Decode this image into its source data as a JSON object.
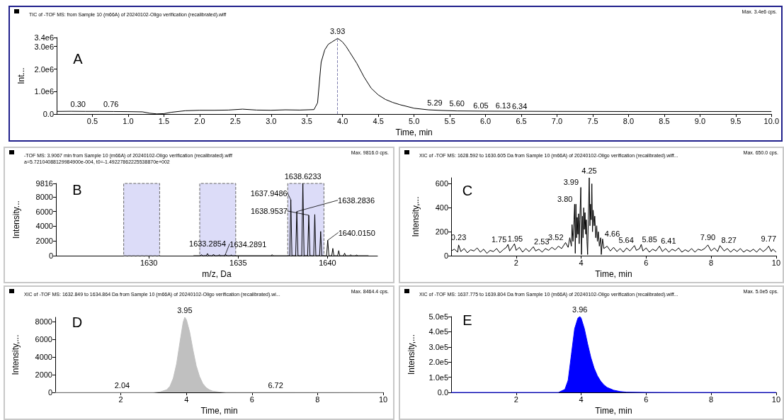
{
  "chart_data": [
    {
      "type": "line",
      "title": "TIC of -TOF MS: from Sample 10 (m66A) of 20240102-Oligo verification (recalibrated).wiff",
      "xlabel": "Time, min",
      "ylabel": "Int...",
      "marker": "none",
      "color": "#000000",
      "x": [
        0,
        0.2,
        0.4,
        0.6,
        0.8,
        1.0,
        1.2,
        1.3,
        1.4,
        1.5,
        1.6,
        1.8,
        2.0,
        2.2,
        2.4,
        2.6,
        2.8,
        3.0,
        3.2,
        3.4,
        3.6,
        3.65,
        3.7,
        3.75,
        3.8,
        3.85,
        3.9,
        3.93,
        3.96,
        4.0,
        4.05,
        4.1,
        4.2,
        4.3,
        4.4,
        4.5,
        4.6,
        4.7,
        4.8,
        5.0,
        5.2,
        5.4,
        5.6,
        6.0,
        6.5,
        7,
        8,
        9,
        10
      ],
      "values": [
        120000,
        125000,
        120000,
        120000,
        115000,
        110000,
        100000,
        40000,
        10000,
        20000,
        80000,
        150000,
        170000,
        170000,
        180000,
        220000,
        180000,
        170000,
        190000,
        180000,
        200000,
        500000,
        2300000,
        2850000,
        3100000,
        3200000,
        3300000,
        3360000,
        3300000,
        3200000,
        3000000,
        2750000,
        2250000,
        1650000,
        1150000,
        850000,
        650000,
        520000,
        420000,
        260000,
        190000,
        160000,
        140000,
        130000,
        125000,
        120000,
        115000,
        115000,
        115000
      ],
      "xlim": [
        0,
        10
      ],
      "xticks": [
        0.5,
        {
          "value": 1,
          "label": "1.0"
        },
        1.5,
        {
          "value": 2,
          "label": "2.0"
        },
        2.5,
        {
          "value": 3,
          "label": "3.0"
        },
        3.5,
        {
          "value": 4,
          "label": "4.0"
        },
        4.5,
        {
          "value": 5,
          "label": "5.0"
        },
        5.5,
        {
          "value": 6,
          "label": "6.0"
        },
        6.5,
        {
          "value": 7,
          "label": "7.0"
        },
        7.5,
        {
          "value": 8,
          "label": "8.0"
        },
        8.5,
        {
          "value": 9,
          "label": "9.0"
        },
        9.5,
        {
          "value": 10,
          "label": "10.0"
        }
      ],
      "ylim": [
        0,
        3400000
      ],
      "yticks": [
        {
          "value": 0,
          "label": "0.0"
        },
        {
          "value": 1000000,
          "label": "1.0e6"
        },
        {
          "value": 2000000,
          "label": "2.0e6"
        },
        {
          "value": 3000000,
          "label": "3.0e6"
        },
        {
          "value": 3400000,
          "label": "3.4e6"
        }
      ],
      "ref_lines": [
        {
          "axis": "x",
          "value": 3.93,
          "color": "#8080b0",
          "line_style": "dashed"
        }
      ],
      "annotations": [
        "Max. 3.4e6 cps.",
        "A",
        {
          "text": "3.93",
          "x": 3.93,
          "y": 3360000
        },
        {
          "text": "0.30",
          "x": 0.3,
          "y": 120000
        },
        {
          "text": "0.76",
          "x": 0.76,
          "y": 115000
        },
        {
          "text": "5.29",
          "x": 5.29,
          "y": 180000
        },
        {
          "text": "5.60",
          "x": 5.6,
          "y": 140000
        },
        {
          "text": "6.05",
          "x": 6.05,
          "y": 130000
        },
        {
          "text": "6.13",
          "x": 6.13,
          "y": 130000
        },
        {
          "text": "6.34",
          "x": 6.34,
          "y": 127000
        }
      ]
    },
    {
      "type": "line",
      "title": "-TOF MS: 3.9067 min from Sample 10 (m66A) of 20240102-Oligo verification (recalibrated).wiff",
      "subtitle": "a=5.72104088129984900e-004, t0=-1.49227862225538870e+002",
      "xlabel": "m/z, Da",
      "ylabel": "Intensity...",
      "marker": "none",
      "color": "#000000",
      "x": [
        1632.5,
        1632.89,
        1632.95,
        1633.01,
        1633.22,
        1633.2854,
        1633.35,
        1633.56,
        1633.62,
        1633.68,
        1633.89,
        1633.95,
        1634.01,
        1634.23,
        1634.2891,
        1634.35,
        1634.56,
        1634.62,
        1634.68,
        1636.84,
        1636.9,
        1636.96,
        1637.89,
        1637.9486,
        1638.01,
        1638.22,
        1638.2836,
        1638.35,
        1638.56,
        1638.6233,
        1638.69,
        1638.89,
        1638.9537,
        1639.02,
        1639.23,
        1639.29,
        1639.35,
        1639.56,
        1639.62,
        1639.68,
        1639.95,
        1640.015,
        1640.08,
        1640.24,
        1640.3,
        1640.36,
        1640.57,
        1640.63,
        1640.69,
        1640.9,
        1640.96,
        1641.02,
        1641.24,
        1641.3,
        1641.36,
        1641.57,
        1641.63,
        1641.69,
        1642.3
      ],
      "values": [
        0,
        0,
        150,
        0,
        0,
        300,
        0,
        0,
        200,
        0,
        0,
        150,
        0,
        0,
        200,
        0,
        0,
        100,
        0,
        0,
        150,
        0,
        0,
        7600,
        0,
        0,
        6000,
        0,
        0,
        9816,
        0,
        0,
        5500,
        0,
        0,
        5600,
        0,
        0,
        3300,
        0,
        0,
        2100,
        0,
        0,
        1000,
        0,
        0,
        700,
        0,
        0,
        350,
        0,
        0,
        150,
        0,
        0,
        100,
        0,
        0
      ],
      "xlim": [
        1624.8,
        1642.8
      ],
      "xticks": [
        1630,
        1635,
        1640
      ],
      "ylim": [
        0,
        9816
      ],
      "yticks": [
        0,
        2000,
        4000,
        6000,
        8000,
        9816
      ],
      "bands": [
        {
          "axis": "x",
          "from": 1628.592,
          "to": 1630.605,
          "color": "#dcdcf8"
        },
        {
          "axis": "x",
          "from": 1632.849,
          "to": 1634.864,
          "color": "#dcdcf8"
        },
        {
          "axis": "x",
          "from": 1637.775,
          "to": 1639.804,
          "color": "#dcdcf8"
        }
      ],
      "annotations": [
        "Max. 9816.0 cps.",
        "B",
        {
          "text": "1638.6233",
          "x": 1638.6233,
          "y": 9816
        },
        {
          "text": "1637.9486",
          "x": 1637.9486,
          "y": 7600
        },
        {
          "text": "1638.2836",
          "x": 1638.2836,
          "y": 6000
        },
        {
          "text": "1638.9537",
          "x": 1638.9537,
          "y": 5500
        },
        {
          "text": "1640.0150",
          "x": 1640.015,
          "y": 2100
        },
        {
          "text": "1633.2854",
          "x": 1633.2854,
          "y": 300
        },
        {
          "text": "1634.2891",
          "x": 1634.2891,
          "y": 200
        }
      ]
    },
    {
      "type": "line",
      "title": "XIC of -TOF MS: 1628.592 to 1630.605 Da from Sample 10 (m66A) of 20240102-Oligo verification (recalibrated).wiff...",
      "xlabel": "Time, min",
      "ylabel": "Intensity,...",
      "marker": "none",
      "color": "#000000",
      "x": [
        0,
        0.1,
        0.2,
        0.23,
        0.3,
        0.4,
        0.5,
        0.6,
        0.7,
        0.8,
        0.9,
        1.0,
        1.1,
        1.2,
        1.3,
        1.4,
        1.5,
        1.6,
        1.7,
        1.75,
        1.8,
        1.9,
        1.95,
        2.0,
        2.1,
        2.2,
        2.3,
        2.4,
        2.53,
        2.6,
        2.7,
        2.8,
        2.9,
        3.0,
        3.1,
        3.2,
        3.3,
        3.4,
        3.52,
        3.6,
        3.65,
        3.7,
        3.72,
        3.75,
        3.78,
        3.8,
        3.82,
        3.84,
        3.86,
        3.88,
        3.9,
        3.92,
        3.94,
        3.96,
        3.99,
        4.01,
        4.04,
        4.06,
        4.08,
        4.1,
        4.12,
        4.14,
        4.16,
        4.18,
        4.2,
        4.22,
        4.25,
        4.27,
        4.29,
        4.31,
        4.33,
        4.35,
        4.37,
        4.4,
        4.42,
        4.45,
        4.48,
        4.5,
        4.53,
        4.56,
        4.6,
        4.62,
        4.66,
        4.7,
        4.8,
        4.9,
        5.0,
        5.1,
        5.2,
        5.3,
        5.4,
        5.5,
        5.64,
        5.7,
        5.8,
        5.85,
        5.9,
        6.0,
        6.1,
        6.2,
        6.3,
        6.41,
        6.5,
        6.6,
        6.7,
        6.8,
        6.9,
        7.0,
        7.1,
        7.2,
        7.3,
        7.4,
        7.5,
        7.6,
        7.7,
        7.8,
        7.9,
        8.0,
        8.1,
        8.2,
        8.27,
        8.4,
        8.5,
        8.6,
        8.7,
        8.8,
        8.9,
        9.0,
        9.1,
        9.2,
        9.3,
        9.4,
        9.5,
        9.6,
        9.7,
        9.77,
        9.85,
        9.9,
        10.0
      ],
      "values": [
        40,
        55,
        30,
        90,
        35,
        60,
        25,
        50,
        40,
        65,
        30,
        55,
        20,
        45,
        35,
        60,
        25,
        50,
        70,
        95,
        40,
        80,
        100,
        45,
        70,
        30,
        60,
        35,
        75,
        40,
        55,
        30,
        60,
        45,
        70,
        50,
        80,
        60,
        110,
        70,
        150,
        80,
        260,
        120,
        300,
        430,
        20,
        430,
        150,
        320,
        180,
        350,
        100,
        300,
        570,
        10,
        330,
        150,
        400,
        220,
        360,
        180,
        300,
        120,
        10,
        300,
        650,
        250,
        430,
        300,
        600,
        200,
        380,
        250,
        330,
        150,
        250,
        120,
        200,
        80,
        150,
        10,
        140,
        60,
        80,
        40,
        70,
        35,
        60,
        30,
        65,
        40,
        85,
        45,
        60,
        95,
        40,
        65,
        30,
        55,
        40,
        80,
        35,
        60,
        30,
        55,
        40,
        65,
        30,
        50,
        35,
        60,
        30,
        55,
        45,
        60,
        90,
        40,
        65,
        35,
        85,
        40,
        60,
        30,
        55,
        35,
        60,
        30,
        50,
        35,
        55,
        30,
        60,
        35,
        55,
        80,
        35,
        55,
        30
      ],
      "xlim": [
        0,
        10
      ],
      "xticks": [
        2,
        4,
        6,
        8,
        10
      ],
      "ylim": [
        0,
        650
      ],
      "yticks": [
        0,
        200,
        400,
        600
      ],
      "annotations": [
        "Max. 650.0 cps.",
        "C",
        {
          "text": "4.25",
          "x": 4.25,
          "y": 650
        },
        {
          "text": "3.99",
          "x": 3.99,
          "y": 570
        },
        {
          "text": "3.80",
          "x": 3.8,
          "y": 430
        },
        {
          "text": "0.23",
          "x": 0.23,
          "y": 90
        },
        {
          "text": "1.75",
          "x": 1.75,
          "y": 95
        },
        {
          "text": "1.95",
          "x": 1.95,
          "y": 100
        },
        {
          "text": "2.53",
          "x": 2.53,
          "y": 75
        },
        {
          "text": "3.52",
          "x": 3.52,
          "y": 110
        },
        {
          "text": "4.66",
          "x": 4.66,
          "y": 140
        },
        {
          "text": "5.64",
          "x": 5.64,
          "y": 85
        },
        {
          "text": "5.85",
          "x": 5.85,
          "y": 95
        },
        {
          "text": "6.41",
          "x": 6.41,
          "y": 80
        },
        {
          "text": "7.90",
          "x": 7.9,
          "y": 90
        },
        {
          "text": "8.27",
          "x": 8.27,
          "y": 85
        },
        {
          "text": "9.77",
          "x": 9.77,
          "y": 80
        }
      ]
    },
    {
      "type": "area",
      "title": "XIC of -TOF MS: 1632.849 to 1634.864 Da from Sample 10 (m66A) of 20240102-Oligo verification (recalibrated).wi...",
      "xlabel": "Time, min",
      "ylabel": "Intensity,...",
      "marker": "none",
      "color": "#c0c0c0",
      "x": [
        0,
        3.0,
        3.2,
        3.4,
        3.5,
        3.6,
        3.7,
        3.8,
        3.9,
        3.95,
        4.0,
        4.1,
        4.2,
        4.3,
        4.4,
        4.5,
        4.6,
        4.7,
        4.8,
        5.0,
        5.2,
        10
      ],
      "values": [
        0,
        0,
        60,
        300,
        700,
        1600,
        3200,
        5600,
        7900,
        8464.4,
        8200,
        6800,
        4800,
        3000,
        1800,
        1000,
        550,
        300,
        150,
        50,
        10,
        0
      ],
      "xlim": [
        0,
        10
      ],
      "xticks": [
        2,
        4,
        6,
        8,
        10
      ],
      "ylim": [
        0,
        8464.4
      ],
      "yticks": [
        0,
        2000,
        4000,
        6000,
        8000
      ],
      "annotations": [
        "Max. 8464.4 cps.",
        "D",
        {
          "text": "3.95",
          "x": 3.95,
          "y": 8464.4
        },
        {
          "text": "2.04",
          "x": 2.04,
          "y": 0
        },
        {
          "text": "6.72",
          "x": 6.72,
          "y": 0
        }
      ]
    },
    {
      "type": "area",
      "title": "XIC of -TOF MS: 1637.775 to 1639.804 Da from Sample 10 (m66A) of 20240102-Oligo verification (recalibrated).wiff...",
      "xlabel": "Time, min",
      "ylabel": "Intensity,...",
      "marker": "none",
      "color": "#0000ff",
      "x": [
        0,
        3.3,
        3.5,
        3.6,
        3.7,
        3.8,
        3.9,
        3.96,
        4.0,
        4.1,
        4.2,
        4.3,
        4.4,
        4.5,
        4.6,
        4.7,
        4.8,
        5.0,
        5.2,
        5.4,
        6.0,
        7.0,
        10
      ],
      "values": [
        0,
        0,
        20000,
        80000,
        250000,
        420000,
        490000,
        500000,
        490000,
        420000,
        320000,
        230000,
        160000,
        110000,
        75000,
        50000,
        33000,
        15000,
        6000,
        2000,
        500,
        0,
        0
      ],
      "xlim": [
        0,
        10
      ],
      "xticks": [
        2,
        4,
        6,
        8,
        10
      ],
      "ylim": [
        0,
        500000
      ],
      "yticks": [
        {
          "value": 0,
          "label": "0.0"
        },
        {
          "value": 100000,
          "label": "1.0e5"
        },
        {
          "value": 200000,
          "label": "2.0e5"
        },
        {
          "value": 300000,
          "label": "3.0e5"
        },
        {
          "value": 400000,
          "label": "4.0e5"
        },
        {
          "value": 500000,
          "label": "5.0e5"
        }
      ],
      "annotations": [
        "Max. 5.0e5 cps.",
        "E",
        {
          "text": "3.96",
          "x": 3.96,
          "y": 500000
        }
      ]
    }
  ]
}
